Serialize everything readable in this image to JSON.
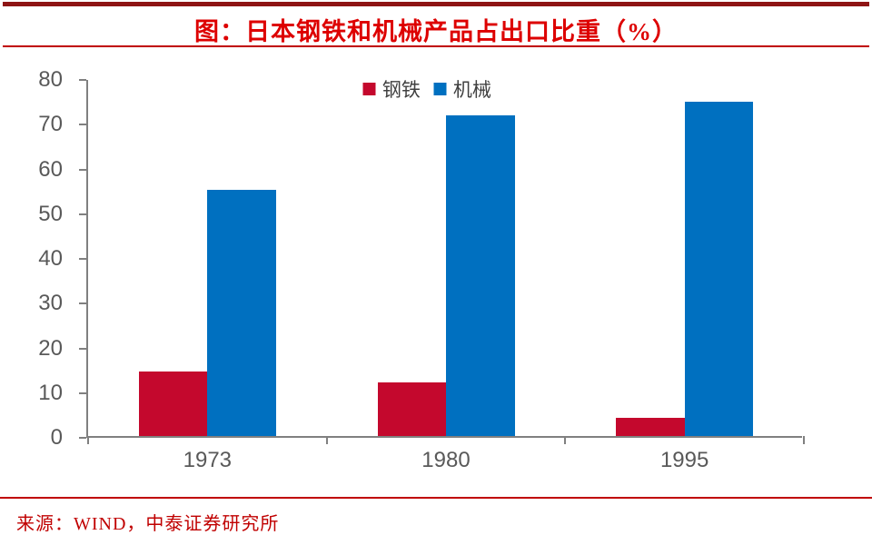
{
  "header": {
    "title": "图：日本钢铁和机械产品占出口比重（%）"
  },
  "footer": {
    "source": "来源：WIND，中泰证券研究所"
  },
  "colors": {
    "dark_red_top_bar": "#8E1414",
    "bright_red_title": "#DD0000",
    "line_red": "#C00000",
    "axis_gray": "#808080",
    "label_gray": "#595959",
    "steel_red": "#C4082D",
    "machinery_blue": "#0070C0"
  },
  "chart_data": {
    "type": "bar",
    "title": "图：日本钢铁和机械产品占出口比重（%）",
    "categories": [
      "1973",
      "1980",
      "1995"
    ],
    "series": [
      {
        "name": "钢铁",
        "color": "#C4082D",
        "values": [
          14.5,
          12.0,
          4.0
        ]
      },
      {
        "name": "机械",
        "color": "#0070C0",
        "values": [
          55.0,
          71.7,
          74.7
        ]
      }
    ],
    "xlabel": "",
    "ylabel": "",
    "ylim": [
      0,
      80
    ],
    "ytick_step": 10,
    "yticks": [
      0,
      10,
      20,
      30,
      40,
      50,
      60,
      70,
      80
    ],
    "grid": false,
    "legend_position": "top-center"
  }
}
